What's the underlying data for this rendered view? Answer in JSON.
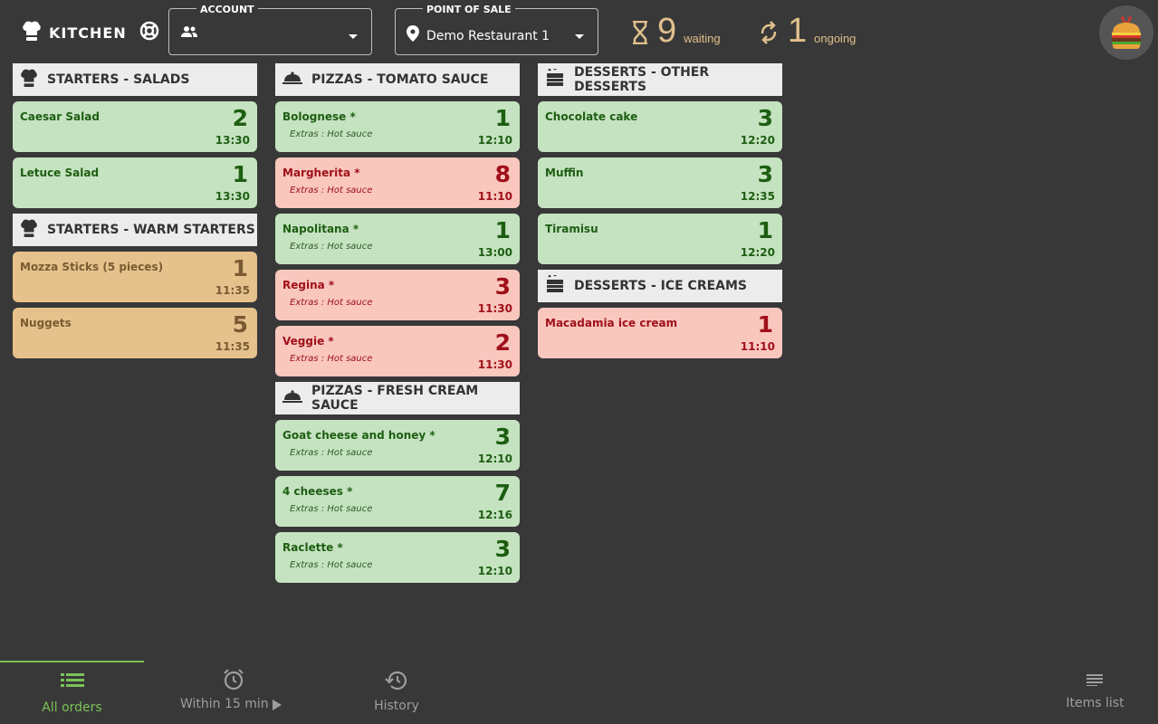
{
  "header": {
    "title": "KITCHEN",
    "account": {
      "legend": "ACCOUNT",
      "value": ""
    },
    "pos": {
      "legend": "POINT OF SALE",
      "value": "Demo Restaurant 1"
    },
    "waiting": {
      "count": "9",
      "label": "waiting"
    },
    "ongoing": {
      "count": "1",
      "label": "ongoing"
    }
  },
  "columns": [
    {
      "sections": [
        {
          "title": "STARTERS - SALADS",
          "icon": "chef-hat-icon",
          "items": [
            {
              "name": "Caesar Salad",
              "extras": "",
              "qty": "2",
              "time": "13:30",
              "status": "green"
            },
            {
              "name": "Letuce Salad",
              "extras": "",
              "qty": "1",
              "time": "13:30",
              "status": "green"
            }
          ]
        },
        {
          "title": "STARTERS - WARM STARTERS",
          "icon": "chef-hat-icon",
          "items": [
            {
              "name": "Mozza Sticks (5 pieces)",
              "extras": "",
              "qty": "1",
              "time": "11:35",
              "status": "amber"
            },
            {
              "name": "Nuggets",
              "extras": "",
              "qty": "5",
              "time": "11:35",
              "status": "amber"
            }
          ]
        }
      ]
    },
    {
      "sections": [
        {
          "title": "PIZZAS - TOMATO SAUCE",
          "icon": "cloche-icon",
          "items": [
            {
              "name": "Bolognese *",
              "extras": "Extras : Hot sauce",
              "qty": "1",
              "time": "12:10",
              "status": "green"
            },
            {
              "name": "Margherita *",
              "extras": "Extras : Hot sauce",
              "qty": "8",
              "time": "11:10",
              "status": "red"
            },
            {
              "name": "Napolitana *",
              "extras": "Extras : Hot sauce",
              "qty": "1",
              "time": "13:00",
              "status": "green"
            },
            {
              "name": "Regina *",
              "extras": "Extras : Hot sauce",
              "qty": "3",
              "time": "11:30",
              "status": "red"
            },
            {
              "name": "Veggie *",
              "extras": "Extras : Hot sauce",
              "qty": "2",
              "time": "11:30",
              "status": "red"
            }
          ]
        },
        {
          "title": "PIZZAS - FRESH CREAM SAUCE",
          "icon": "cloche-icon",
          "items": [
            {
              "name": "Goat cheese and honey *",
              "extras": "Extras : Hot sauce",
              "qty": "3",
              "time": "12:10",
              "status": "green"
            },
            {
              "name": "4 cheeses *",
              "extras": "Extras : Hot sauce",
              "qty": "7",
              "time": "12:16",
              "status": "green"
            },
            {
              "name": "Raclette *",
              "extras": "Extras : Hot sauce",
              "qty": "3",
              "time": "12:10",
              "status": "green"
            }
          ]
        }
      ]
    },
    {
      "sections": [
        {
          "title": "DESSERTS - OTHER DESSERTS",
          "icon": "cake-icon",
          "items": [
            {
              "name": "Chocolate cake",
              "extras": "",
              "qty": "3",
              "time": "12:20",
              "status": "green"
            },
            {
              "name": "Muffin",
              "extras": "",
              "qty": "3",
              "time": "12:35",
              "status": "green"
            },
            {
              "name": "Tiramisu",
              "extras": "",
              "qty": "1",
              "time": "12:20",
              "status": "green"
            }
          ]
        },
        {
          "title": "DESSERTS - ICE CREAMS",
          "icon": "cake-icon",
          "items": [
            {
              "name": "Macadamia ice cream",
              "extras": "",
              "qty": "1",
              "time": "11:10",
              "status": "red"
            }
          ]
        }
      ]
    }
  ],
  "nav": {
    "all_orders": "All orders",
    "within": "Within 15 min",
    "history": "History",
    "items_list": "Items list"
  },
  "colors": {
    "background": "#383838",
    "green_card": "#c5e3c0",
    "red_card": "#f9c7be",
    "amber_card": "#e5c28c",
    "accent": "#7bc257",
    "counter": "#e0c08c"
  }
}
